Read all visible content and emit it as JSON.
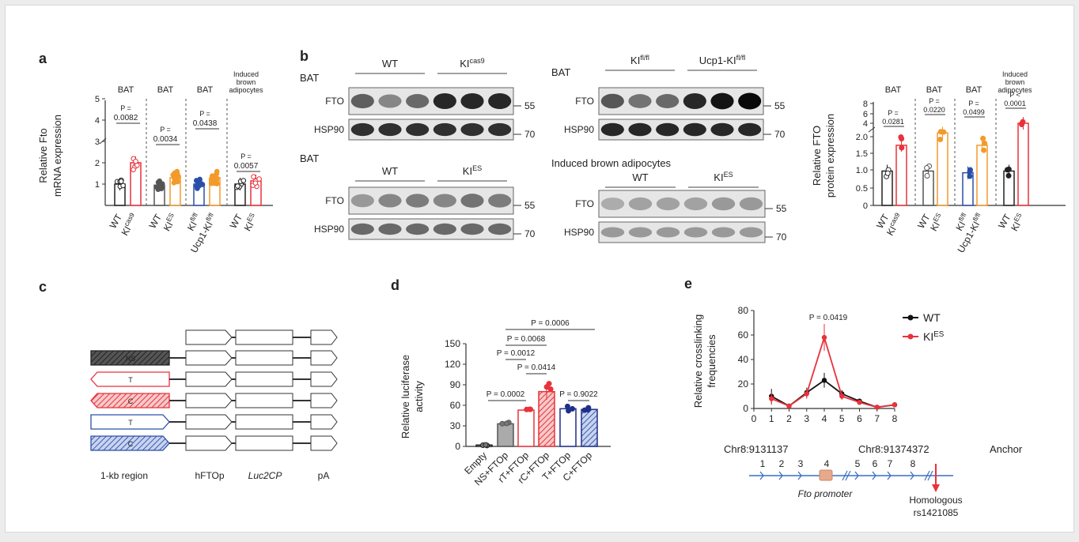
{
  "colors": {
    "wt": "#222222",
    "red": "#e8323c",
    "orange": "#f39a2a",
    "blue": "#2b4fa8",
    "navy": "#1f2f8a",
    "blot_blue": "#3a6fc4"
  },
  "panel_a": {
    "letter": "a",
    "ylabel_1": "Relative Fto",
    "ylabel_2": "mRNA expression",
    "yticks": [
      "1",
      "2",
      "3",
      "4",
      "5"
    ],
    "groups": [
      {
        "tissue": "BAT",
        "p_label": "P =",
        "p_value": "0.0082",
        "x1": "WT",
        "x2": "KI",
        "x2_sup": "cas9",
        "c1": "#222222",
        "c2": "#e8323c",
        "v1": 1.0,
        "v2": 2.0
      },
      {
        "tissue": "BAT",
        "p_label": "P =",
        "p_value": "0.0034",
        "x1": "WT",
        "x2": "KI",
        "x2_sup": "ES",
        "c1": "#555555",
        "c2": "#f39a2a",
        "v1": 0.95,
        "v2": 1.3
      },
      {
        "tissue": "BAT",
        "p_label": "P =",
        "p_value": "0.0438",
        "x1": "KI",
        "x1_sup": "fl/fl",
        "x2": "Ucp1-KI",
        "x2_sup": "fl/fl",
        "c1": "#2b4fa8",
        "c2": "#f39a2a",
        "v1": 1.0,
        "v2": 1.3
      },
      {
        "tissue_1": "Induced",
        "tissue_2": "brown",
        "tissue_3": "adipocytes",
        "p_label": "P =",
        "p_value": "0.0057",
        "x1": "WT",
        "x2": "KI",
        "x2_sup": "ES",
        "c1": "#222222",
        "c2": "#e8323c",
        "v1": 1.0,
        "v2": 1.15
      }
    ]
  },
  "panel_b": {
    "letter": "b",
    "blots": [
      {
        "title": "BAT",
        "g1": "WT",
        "g2": "KI",
        "g2_sup": "cas9",
        "r1": "FTO",
        "r2": "HSP90",
        "m1": "55",
        "m2": "70"
      },
      {
        "title": "BAT",
        "g1": "KI",
        "g1_sup": "fl/fl",
        "g2": "Ucp1-KI",
        "g2_sup": "fl/fl",
        "r1": "FTO",
        "r2": "HSP90",
        "m1": "55",
        "m2": "70"
      },
      {
        "title": "BAT",
        "g1": "WT",
        "g2": "KI",
        "g2_sup": "ES",
        "r1": "FTO",
        "r2": "HSP90",
        "m1": "55",
        "m2": "70"
      },
      {
        "title": "Induced brown adipocytes",
        "g1": "WT",
        "g2": "KI",
        "g2_sup": "ES",
        "r1": "FTO",
        "r2": "HSP90",
        "m1": "55",
        "m2": "70"
      }
    ],
    "quant": {
      "ylabel_1": "Relative FTO",
      "ylabel_2": "protein expression",
      "yticks": [
        "0",
        "0.5",
        "1.0",
        "1.5",
        "2.0",
        "4",
        "6",
        "8"
      ],
      "groups": [
        {
          "tissue": "BAT",
          "p_label": "P =",
          "p_value": "0.0281",
          "x1": "WT",
          "x2": "KI",
          "x2_sup": "cas9",
          "v1": 1.0,
          "v2": 1.75
        },
        {
          "tissue": "BAT",
          "p_label": "P =",
          "p_value": "0.0220",
          "x1": "WT",
          "x2": "KI",
          "x2_sup": "ES",
          "v1": 1.0,
          "v2": 2.05
        },
        {
          "tissue": "BAT",
          "p_label": "P =",
          "p_value": "0.0499",
          "x1": "KI",
          "x1_sup": "fl/fl",
          "x2": "Ucp1-KI",
          "x2_sup": "fl/fl",
          "v1": 0.95,
          "v2": 1.75
        },
        {
          "tissue_1": "Induced",
          "tissue_2": "brown",
          "tissue_3": "adipocytes",
          "p_label": "P <",
          "p_value": "0.0001",
          "x1": "WT",
          "x2": "KI",
          "x2_sup": "ES",
          "v1": 1.0,
          "v2": 4.0
        }
      ]
    }
  },
  "panel_c": {
    "letter": "c",
    "rows": [
      {
        "label": "",
        "type": "none"
      },
      {
        "label": "NS",
        "type": "ns"
      },
      {
        "label": "T",
        "type": "rt"
      },
      {
        "label": "C",
        "type": "rc"
      },
      {
        "label": "T",
        "type": "t"
      },
      {
        "label": "C",
        "type": "c"
      }
    ],
    "captions": [
      "1-kb region",
      "hFTOp",
      "Luc2CP",
      "pA"
    ]
  },
  "panel_d": {
    "letter": "d",
    "ylabel_1": "Relative luciferase",
    "ylabel_2": "activity",
    "yticks": [
      "0",
      "30",
      "60",
      "90",
      "120",
      "150"
    ],
    "pvalues": [
      "P = 0.0006",
      "P = 0.0068",
      "P = 0.0012",
      "P = 0.0414",
      "P = 0.0002",
      "P = 0.9022"
    ],
    "chart_data": {
      "type": "bar",
      "categories": [
        "Empty",
        "NS+FTOp",
        "rT+FTOp",
        "rC+FTOp",
        "T+FTOp",
        "C+FTOp"
      ],
      "values": [
        2,
        33,
        53,
        80,
        55,
        54
      ],
      "ylim": [
        0,
        150
      ]
    }
  },
  "panel_e": {
    "letter": "e",
    "ylabel_1": "Relative crosslinking",
    "ylabel_2": "frequencies",
    "pvalue": "P = 0.0419",
    "legend": [
      {
        "name": "WT",
        "color": "#111111"
      },
      {
        "name": "KI",
        "sup": "ES",
        "color": "#e8323c"
      }
    ],
    "chart_data": {
      "type": "line",
      "x": [
        1,
        2,
        3,
        4,
        5,
        6,
        7,
        8
      ],
      "series": [
        {
          "name": "WT",
          "values": [
            10,
            2,
            13,
            23,
            12,
            6,
            1,
            3
          ]
        },
        {
          "name": "KI ES",
          "values": [
            8,
            2,
            12,
            58,
            10,
            5,
            1,
            3
          ]
        }
      ],
      "xlim": [
        0,
        8
      ],
      "ylim": [
        0,
        80
      ],
      "xticks": [
        "0",
        "1",
        "2",
        "3",
        "4",
        "5",
        "6",
        "7",
        "8"
      ],
      "yticks": [
        "0",
        "20",
        "40",
        "60",
        "80"
      ]
    },
    "map": {
      "left_coord": "Chr8:9131137",
      "right_coord": "Chr8:91374372",
      "anchor": "Anchor",
      "site_labels": [
        "1",
        "2",
        "3",
        "4",
        "5",
        "6",
        "7",
        "8"
      ],
      "promoter": "Fto promoter",
      "homologous_1": "Homologous",
      "homologous_2": "rs1421085"
    }
  }
}
